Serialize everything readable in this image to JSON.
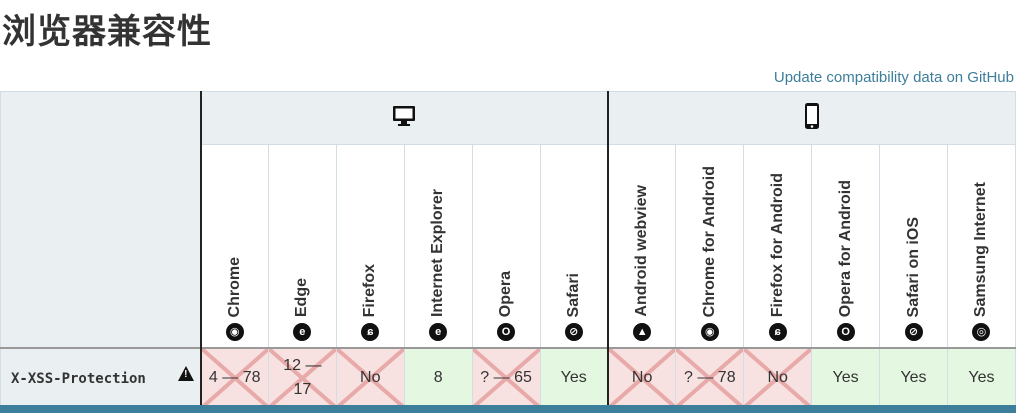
{
  "page": {
    "heading": "浏览器兼容性",
    "github_link": "Update compatibility data on GitHub"
  },
  "platforms": [
    {
      "name": "desktop",
      "icon": "desktop-icon"
    },
    {
      "name": "mobile",
      "icon": "mobile-phone-icon"
    }
  ],
  "browsers": [
    {
      "name": "Chrome",
      "icon": "chrome-icon",
      "glyph": "◉"
    },
    {
      "name": "Edge",
      "icon": "edge-icon",
      "glyph": "e"
    },
    {
      "name": "Firefox",
      "icon": "firefox-icon",
      "glyph": "ɕ"
    },
    {
      "name": "Internet Explorer",
      "icon": "internet-explorer-icon",
      "glyph": "e"
    },
    {
      "name": "Opera",
      "icon": "opera-icon",
      "glyph": "O"
    },
    {
      "name": "Safari",
      "icon": "safari-icon",
      "glyph": "⊘"
    },
    {
      "name": "Android webview",
      "icon": "android-icon",
      "glyph": "▲"
    },
    {
      "name": "Chrome for Android",
      "icon": "chrome-icon",
      "glyph": "◉"
    },
    {
      "name": "Firefox for Android",
      "icon": "firefox-icon",
      "glyph": "ɕ"
    },
    {
      "name": "Opera for Android",
      "icon": "opera-icon",
      "glyph": "O"
    },
    {
      "name": "Safari on iOS",
      "icon": "safari-icon",
      "glyph": "⊘"
    },
    {
      "name": "Samsung Internet",
      "icon": "samsung-internet-icon",
      "glyph": "◎"
    }
  ],
  "feature": {
    "name": "X-XSS-Protection",
    "warning_icon": "warning-icon",
    "support": [
      {
        "text": "4 — 78",
        "status": "no"
      },
      {
        "text": "12 — 17",
        "status": "no"
      },
      {
        "text": "No",
        "status": "no"
      },
      {
        "text": "8",
        "status": "yes"
      },
      {
        "text": "? — 65",
        "status": "no"
      },
      {
        "text": "Yes",
        "status": "yes"
      },
      {
        "text": "No",
        "status": "no"
      },
      {
        "text": "? — 78",
        "status": "no"
      },
      {
        "text": "No",
        "status": "no"
      },
      {
        "text": "Yes",
        "status": "yes"
      },
      {
        "text": "Yes",
        "status": "yes"
      },
      {
        "text": "Yes",
        "status": "yes"
      }
    ]
  },
  "colors": {
    "yes_bg": "#e4f8e1",
    "no_bg": "#f8e1e1",
    "no_cross": "#e8a9a9",
    "link": "#3d7e9a",
    "header_bg": "#eaeff2"
  }
}
